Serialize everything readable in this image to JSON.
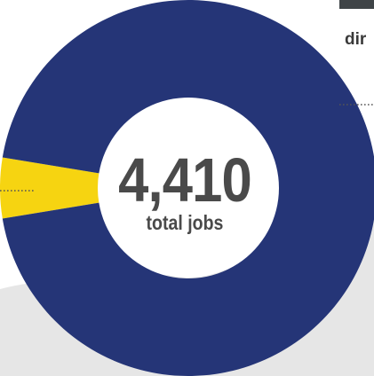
{
  "chart_data": {
    "type": "pie",
    "donut": true,
    "slices": [
      {
        "value": 94.8,
        "color": "#253577"
      },
      {
        "value": 5.2,
        "color": "#f6d411"
      }
    ],
    "center": {
      "value": "4,410",
      "label": "total jobs"
    }
  },
  "partial_label": "dir",
  "colors": {
    "primary": "#253577",
    "highlight": "#f6d411",
    "leader_line": "#555555",
    "text": "#4a4a4a",
    "background_shape": "#e6e6e6"
  }
}
